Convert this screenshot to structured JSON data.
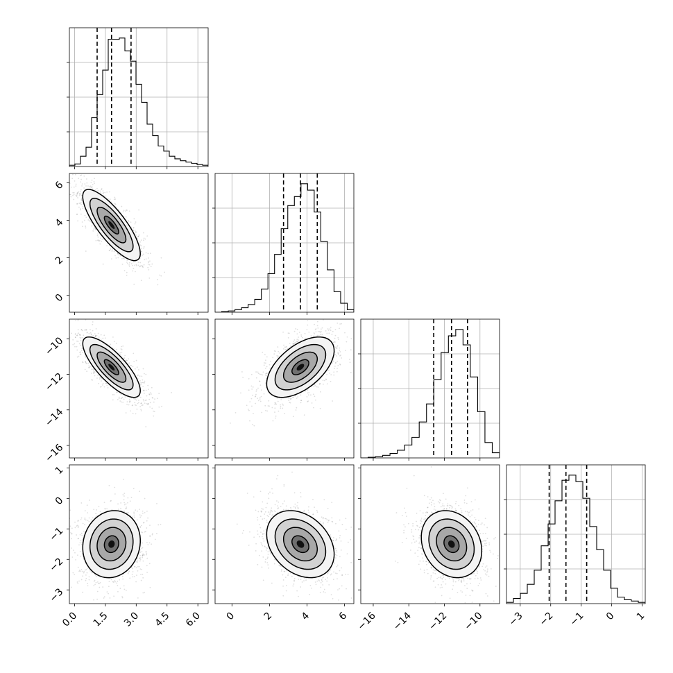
{
  "chart_data": {
    "type": "corner",
    "grid": true,
    "parameters": [
      {
        "range": [
          -0.25,
          6.5
        ],
        "ticks": [
          0.0,
          1.5,
          3.0,
          4.5,
          6.0
        ],
        "tick_labels": [
          "0.0",
          "1.5",
          "3.0",
          "4.5",
          "6.0"
        ],
        "quantiles": [
          1.1,
          1.8,
          2.75
        ],
        "histogram": [
          0.01,
          0.02,
          0.08,
          0.15,
          0.38,
          0.56,
          0.75,
          0.99,
          0.99,
          1.0,
          0.9,
          0.82,
          0.64,
          0.5,
          0.33,
          0.24,
          0.16,
          0.12,
          0.08,
          0.06,
          0.045,
          0.035,
          0.025,
          0.015,
          0.01
        ]
      },
      {
        "range": [
          -0.9,
          6.5
        ],
        "ticks": [
          0,
          2,
          4,
          6
        ],
        "tick_labels": [
          "0",
          "2",
          "4",
          "6"
        ],
        "quantiles": [
          2.75,
          3.65,
          4.55
        ],
        "histogram": [
          0.0,
          0.005,
          0.01,
          0.02,
          0.035,
          0.06,
          0.1,
          0.18,
          0.3,
          0.45,
          0.65,
          0.83,
          0.9,
          1.0,
          0.95,
          0.78,
          0.55,
          0.33,
          0.16,
          0.07,
          0.02
        ]
      },
      {
        "range": [
          -16.7,
          -8.9
        ],
        "ticks": [
          -16,
          -14,
          -12,
          -10
        ],
        "tick_labels": [
          "−16",
          "−14",
          "−12",
          "−10"
        ],
        "quantiles": [
          -12.6,
          -11.6,
          -10.7
        ],
        "histogram": [
          0.0,
          0.005,
          0.01,
          0.02,
          0.035,
          0.06,
          0.1,
          0.16,
          0.28,
          0.42,
          0.61,
          0.82,
          0.95,
          1.0,
          0.88,
          0.63,
          0.36,
          0.12,
          0.04
        ]
      },
      {
        "range": [
          -3.45,
          1.1
        ],
        "ticks": [
          -3,
          -2,
          -1,
          0,
          1
        ],
        "tick_labels": [
          "−3",
          "−2",
          "−1",
          "0",
          "1"
        ],
        "quantiles": [
          -2.05,
          -1.5,
          -0.82
        ],
        "histogram": [
          0.01,
          0.04,
          0.08,
          0.15,
          0.26,
          0.45,
          0.62,
          0.8,
          0.96,
          1.0,
          0.95,
          0.82,
          0.6,
          0.42,
          0.26,
          0.12,
          0.05,
          0.03,
          0.02,
          0.01
        ]
      }
    ],
    "pairs": [
      {
        "row": 1,
        "col": 0,
        "mean": [
          1.8,
          3.75
        ],
        "sd": [
          0.7,
          0.95
        ],
        "rho": -0.8
      },
      {
        "row": 2,
        "col": 0,
        "mean": [
          1.8,
          -11.6
        ],
        "sd": [
          0.7,
          0.85
        ],
        "rho": -0.78
      },
      {
        "row": 2,
        "col": 1,
        "mean": [
          3.65,
          -11.6
        ],
        "sd": [
          0.9,
          0.85
        ],
        "rho": 0.55
      },
      {
        "row": 3,
        "col": 0,
        "mean": [
          1.8,
          -1.5
        ],
        "sd": [
          0.7,
          0.55
        ],
        "rho": 0.1
      },
      {
        "row": 3,
        "col": 1,
        "mean": [
          3.65,
          -1.5
        ],
        "sd": [
          0.9,
          0.55
        ],
        "rho": -0.3
      },
      {
        "row": 3,
        "col": 2,
        "mean": [
          -11.6,
          -1.5
        ],
        "sd": [
          0.85,
          0.55
        ],
        "rho": -0.2
      }
    ],
    "contour_levels_sigma": [
      0.5,
      1.0,
      1.5,
      2.0
    ]
  }
}
